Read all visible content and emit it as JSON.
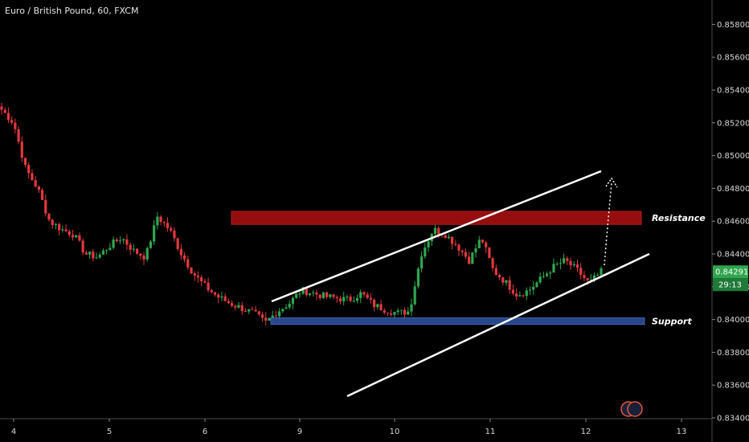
{
  "chart_data": {
    "type": "candlestick",
    "title": "Euro / British Pound, 60, FXCM",
    "ylim": [
      0.834,
      0.859
    ],
    "y_ticks": [
      "0.85800",
      "0.85600",
      "0.85400",
      "0.85200",
      "0.85000",
      "0.84800",
      "0.84600",
      "0.84400",
      "0.84200",
      "0.84000",
      "0.83800",
      "0.83600",
      "0.83400"
    ],
    "x_ticks": [
      "4",
      "5",
      "6",
      "9",
      "10",
      "11",
      "12",
      "13"
    ],
    "grid": false,
    "colors": {
      "up": "#2fa64d",
      "down": "#e0393e",
      "background": "#000000",
      "trendline": "#ffffff",
      "resistance": "#b01010",
      "support": "#2b4f9a",
      "price_tag": "#2fa64d"
    },
    "current_price": "0.84291",
    "countdown": "29:13",
    "zones": [
      {
        "name": "Resistance",
        "low": 0.8458,
        "high": 0.8466
      },
      {
        "name": "Support",
        "low": 0.8397,
        "high": 0.8401
      }
    ],
    "forecast_arrow": "dotted-up",
    "key_prices": [
      0.8528,
      0.852,
      0.8492,
      0.848,
      0.846,
      0.8455,
      0.8452,
      0.844,
      0.8438,
      0.8445,
      0.845,
      0.8442,
      0.8438,
      0.8463,
      0.8455,
      0.844,
      0.8428,
      0.842,
      0.8414,
      0.841,
      0.8407,
      0.8404,
      0.8398,
      0.8405,
      0.841,
      0.8418,
      0.8416,
      0.8414,
      0.8413,
      0.8412,
      0.8416,
      0.8409,
      0.8406,
      0.8404,
      0.8405,
      0.844,
      0.8455,
      0.8452,
      0.8445,
      0.8436,
      0.845,
      0.843,
      0.8423,
      0.8415,
      0.8418,
      0.8425,
      0.8432,
      0.8436,
      0.843,
      0.8422,
      0.8429
    ]
  }
}
